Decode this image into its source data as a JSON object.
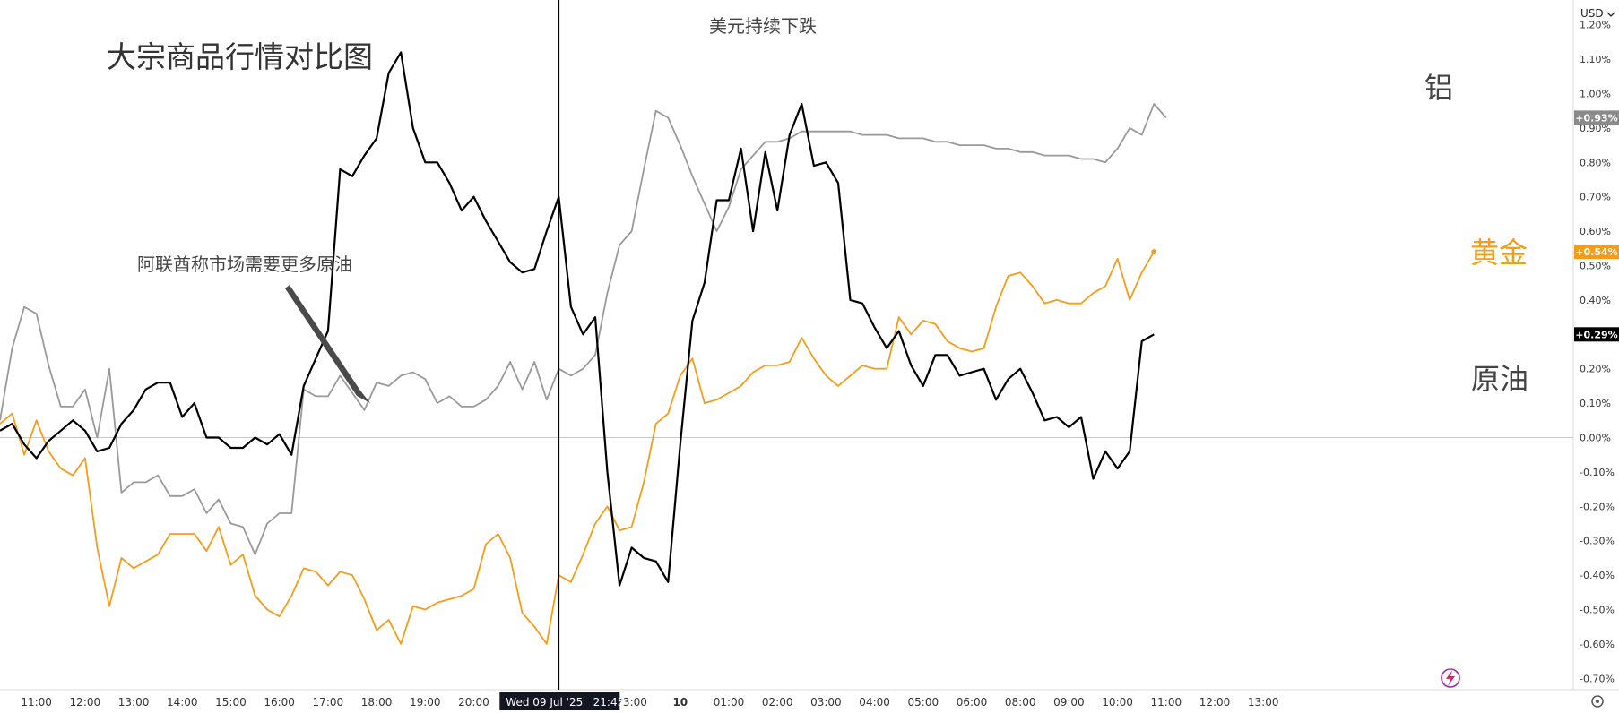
{
  "chart_data": {
    "type": "line",
    "title": "大宗商品行情对比图",
    "currency": "USD",
    "x_labels": [
      {
        "i": 3,
        "label": "11:00"
      },
      {
        "i": 7,
        "label": "12:00"
      },
      {
        "i": 11,
        "label": "13:00"
      },
      {
        "i": 15,
        "label": "14:00"
      },
      {
        "i": 19,
        "label": "15:00"
      },
      {
        "i": 23,
        "label": "16:00"
      },
      {
        "i": 27,
        "label": "17:00"
      },
      {
        "i": 31,
        "label": "18:00"
      },
      {
        "i": 35,
        "label": "19:00"
      },
      {
        "i": 39,
        "label": "20:00"
      },
      {
        "i": 52,
        "label": "23:00"
      },
      {
        "i": 56,
        "label": "10",
        "bold": true
      },
      {
        "i": 60,
        "label": "01:00"
      },
      {
        "i": 64,
        "label": "02:00"
      },
      {
        "i": 68,
        "label": "03:00"
      },
      {
        "i": 72,
        "label": "04:00"
      },
      {
        "i": 76,
        "label": "05:00"
      },
      {
        "i": 80,
        "label": "06:00"
      },
      {
        "i": 84,
        "label": "08:00"
      },
      {
        "i": 88,
        "label": "09:00"
      },
      {
        "i": 92,
        "label": "10:00"
      },
      {
        "i": 96,
        "label": "11:00"
      },
      {
        "i": 100,
        "label": "12:00"
      },
      {
        "i": 104,
        "label": "13:00"
      }
    ],
    "cursor": {
      "i": 46,
      "label": "Wed 09 Jul '25   21:45"
    },
    "y_ticks": [
      1.2,
      1.1,
      1.0,
      0.9,
      0.8,
      0.7,
      0.6,
      0.5,
      0.4,
      0.3,
      0.2,
      0.1,
      0.0,
      -0.1,
      -0.2,
      -0.3,
      -0.4,
      -0.5,
      -0.6,
      -0.7
    ],
    "y_tick_labels": [
      "1.20%",
      "1.10%",
      "1.00%",
      "0.90%",
      "0.80%",
      "0.70%",
      "0.60%",
      "0.50%",
      "0.40%",
      "0.30%",
      "0.20%",
      "0.10%",
      "0.00%",
      "-0.10%",
      "-0.20%",
      "-0.30%",
      "-0.40%",
      "-0.50%",
      "-0.60%",
      "-0.70%"
    ],
    "ylim": [
      -0.75,
      1.25
    ],
    "series": [
      {
        "name": "原油",
        "color": "#000000",
        "end_label": "+0.29%",
        "values": [
          0.02,
          0.04,
          -0.02,
          -0.06,
          -0.01,
          0.02,
          0.05,
          0.02,
          -0.04,
          -0.03,
          0.04,
          0.08,
          0.14,
          0.16,
          0.16,
          0.06,
          0.1,
          0.0,
          0.0,
          -0.03,
          -0.03,
          0.0,
          -0.02,
          0.01,
          -0.05,
          0.15,
          0.23,
          0.31,
          0.78,
          0.76,
          0.82,
          0.87,
          1.06,
          1.12,
          0.9,
          0.8,
          0.8,
          0.74,
          0.66,
          0.7,
          0.63,
          0.57,
          0.51,
          0.48,
          0.49,
          0.6,
          0.7,
          0.38,
          0.3,
          0.35,
          -0.1,
          -0.43,
          -0.32,
          -0.35,
          -0.36,
          -0.42,
          -0.02,
          0.34,
          0.45,
          0.69,
          0.69,
          0.84,
          0.6,
          0.83,
          0.66,
          0.88,
          0.97,
          0.79,
          0.8,
          0.74,
          0.4,
          0.39,
          0.32,
          0.26,
          0.31,
          0.21,
          0.15,
          0.24,
          0.24,
          0.18,
          0.19,
          0.2,
          0.11,
          0.17,
          0.2,
          0.13,
          0.05,
          0.06,
          0.03,
          0.06,
          -0.12,
          -0.04,
          -0.09,
          -0.04,
          0.28,
          0.3
        ]
      },
      {
        "name": "黄金",
        "color": "#f59c1a",
        "end_label": "+0.54%",
        "values": [
          0.04,
          0.07,
          -0.05,
          0.05,
          -0.04,
          -0.09,
          -0.11,
          -0.06,
          -0.32,
          -0.49,
          -0.35,
          -0.38,
          -0.36,
          -0.34,
          -0.28,
          -0.28,
          -0.28,
          -0.33,
          -0.26,
          -0.37,
          -0.34,
          -0.46,
          -0.5,
          -0.52,
          -0.46,
          -0.38,
          -0.39,
          -0.43,
          -0.39,
          -0.4,
          -0.47,
          -0.56,
          -0.53,
          -0.6,
          -0.49,
          -0.5,
          -0.48,
          -0.47,
          -0.46,
          -0.44,
          -0.31,
          -0.28,
          -0.35,
          -0.51,
          -0.55,
          -0.6,
          -0.4,
          -0.42,
          -0.34,
          -0.25,
          -0.2,
          -0.27,
          -0.26,
          -0.13,
          0.04,
          0.07,
          0.18,
          0.23,
          0.1,
          0.11,
          0.13,
          0.15,
          0.19,
          0.21,
          0.21,
          0.22,
          0.29,
          0.23,
          0.18,
          0.15,
          0.18,
          0.21,
          0.2,
          0.2,
          0.35,
          0.3,
          0.34,
          0.33,
          0.28,
          0.26,
          0.25,
          0.26,
          0.38,
          0.47,
          0.48,
          0.44,
          0.39,
          0.4,
          0.39,
          0.39,
          0.42,
          0.44,
          0.52,
          0.4,
          0.48,
          0.54
        ]
      },
      {
        "name": "铝",
        "color": "#999999",
        "end_label": "+0.93%",
        "values": [
          0.05,
          0.26,
          0.38,
          0.36,
          0.21,
          0.09,
          0.09,
          0.14,
          0.0,
          0.2,
          -0.16,
          -0.13,
          -0.13,
          -0.11,
          -0.17,
          -0.17,
          -0.15,
          -0.22,
          -0.18,
          -0.25,
          -0.26,
          -0.34,
          -0.25,
          -0.22,
          -0.22,
          0.14,
          0.12,
          0.12,
          0.18,
          0.13,
          0.08,
          0.16,
          0.15,
          0.18,
          0.19,
          0.17,
          0.1,
          0.12,
          0.09,
          0.09,
          0.11,
          0.15,
          0.22,
          0.14,
          0.22,
          0.11,
          0.2,
          0.18,
          0.2,
          0.24,
          0.42,
          0.56,
          0.6,
          0.78,
          0.95,
          0.93,
          0.85,
          0.76,
          0.68,
          0.6,
          0.67,
          0.78,
          0.82,
          0.86,
          0.86,
          0.87,
          0.89,
          0.89,
          0.89,
          0.89,
          0.89,
          0.88,
          0.88,
          0.88,
          0.87,
          0.87,
          0.87,
          0.86,
          0.86,
          0.85,
          0.85,
          0.85,
          0.84,
          0.84,
          0.83,
          0.83,
          0.82,
          0.82,
          0.82,
          0.81,
          0.81,
          0.8,
          0.84,
          0.9,
          0.88,
          0.97,
          0.93
        ]
      }
    ],
    "annotations": [
      {
        "text": "阿联酋称市场需要更多原油"
      },
      {
        "text": "美元持续下跌"
      }
    ],
    "legend_labels": [
      {
        "series": "铝",
        "text": "铝"
      },
      {
        "series": "黄金",
        "text": "黄金"
      },
      {
        "series": "原油",
        "text": "原油"
      }
    ]
  }
}
